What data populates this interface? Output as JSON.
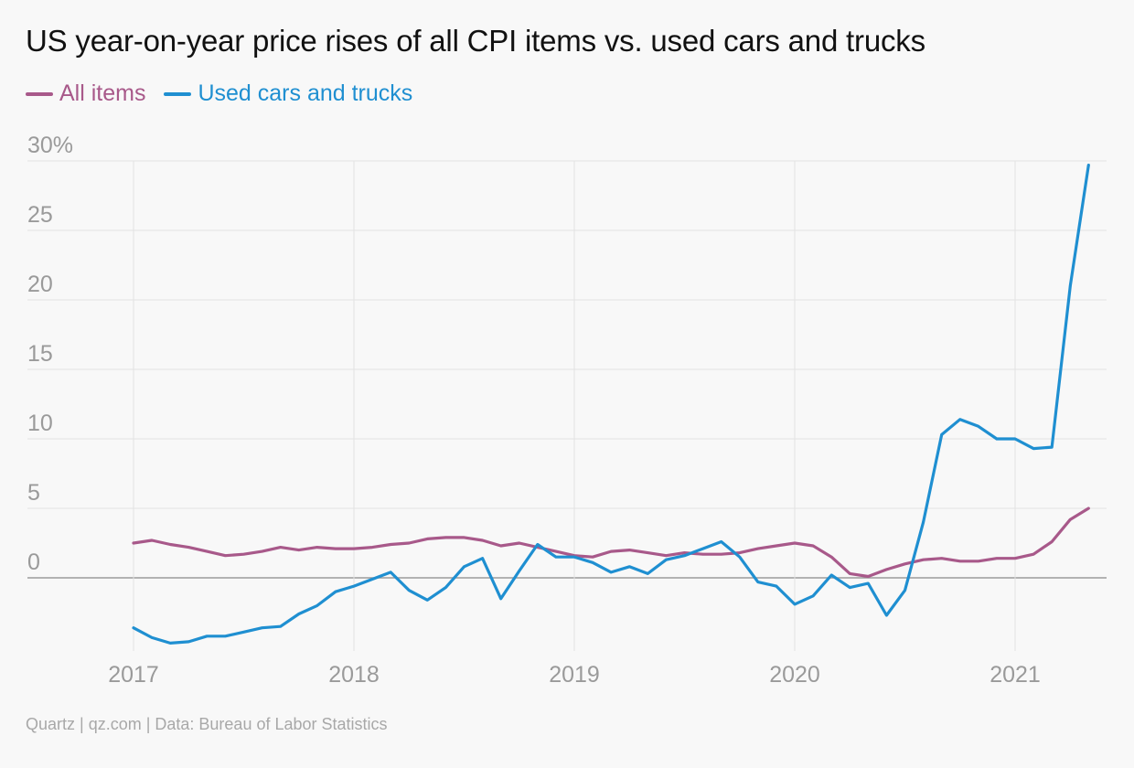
{
  "title": "US year-on-year price rises of all CPI items vs. used cars and trucks",
  "footer": "Quartz | qz.com | Data: Bureau of Labor Statistics",
  "legend": [
    {
      "label": "All items",
      "color": "#a8598a"
    },
    {
      "label": "Used cars and trucks",
      "color": "#1f8fd1"
    }
  ],
  "chart_data": {
    "type": "line",
    "title": "US year-on-year price rises of all CPI items vs. used cars and trucks",
    "xlabel": "",
    "ylabel": "",
    "ylim": [
      -4.8,
      30
    ],
    "yticks": [
      0,
      5,
      10,
      15,
      20,
      25,
      30
    ],
    "ytick_labels": [
      "0",
      "5",
      "10",
      "15",
      "20",
      "25",
      "30%"
    ],
    "xticks": [
      "2017",
      "2018",
      "2019",
      "2020",
      "2021"
    ],
    "grid": true,
    "legend_position": "top-left",
    "x": [
      "2017-01",
      "2017-02",
      "2017-03",
      "2017-04",
      "2017-05",
      "2017-06",
      "2017-07",
      "2017-08",
      "2017-09",
      "2017-10",
      "2017-11",
      "2017-12",
      "2018-01",
      "2018-02",
      "2018-03",
      "2018-04",
      "2018-05",
      "2018-06",
      "2018-07",
      "2018-08",
      "2018-09",
      "2018-10",
      "2018-11",
      "2018-12",
      "2019-01",
      "2019-02",
      "2019-03",
      "2019-04",
      "2019-05",
      "2019-06",
      "2019-07",
      "2019-08",
      "2019-09",
      "2019-10",
      "2019-11",
      "2019-12",
      "2020-01",
      "2020-02",
      "2020-03",
      "2020-04",
      "2020-05",
      "2020-06",
      "2020-07",
      "2020-08",
      "2020-09",
      "2020-10",
      "2020-11",
      "2020-12",
      "2021-01",
      "2021-02",
      "2021-03",
      "2021-04",
      "2021-05"
    ],
    "series": [
      {
        "name": "All items",
        "color": "#a8598a",
        "values": [
          2.5,
          2.7,
          2.4,
          2.2,
          1.9,
          1.6,
          1.7,
          1.9,
          2.2,
          2.0,
          2.2,
          2.1,
          2.1,
          2.2,
          2.4,
          2.5,
          2.8,
          2.9,
          2.9,
          2.7,
          2.3,
          2.5,
          2.2,
          1.9,
          1.6,
          1.5,
          1.9,
          2.0,
          1.8,
          1.6,
          1.8,
          1.7,
          1.7,
          1.8,
          2.1,
          2.3,
          2.5,
          2.3,
          1.5,
          0.3,
          0.1,
          0.6,
          1.0,
          1.3,
          1.4,
          1.2,
          1.2,
          1.4,
          1.4,
          1.7,
          2.6,
          4.2,
          5.0
        ]
      },
      {
        "name": "Used cars and trucks",
        "color": "#1f8fd1",
        "values": [
          -3.6,
          -4.3,
          -4.7,
          -4.6,
          -4.2,
          -4.2,
          -3.9,
          -3.6,
          -3.5,
          -2.6,
          -2.0,
          -1.0,
          -0.6,
          -0.1,
          0.4,
          -0.9,
          -1.6,
          -0.7,
          0.8,
          1.4,
          -1.5,
          0.5,
          2.4,
          1.5,
          1.5,
          1.1,
          0.4,
          0.8,
          0.3,
          1.3,
          1.6,
          2.1,
          2.6,
          1.5,
          -0.3,
          -0.6,
          -1.9,
          -1.3,
          0.2,
          -0.7,
          -0.4,
          -2.7,
          -0.9,
          4.0,
          10.3,
          11.4,
          10.9,
          10.0,
          10.0,
          9.3,
          9.4,
          21.0,
          29.7
        ]
      }
    ]
  }
}
